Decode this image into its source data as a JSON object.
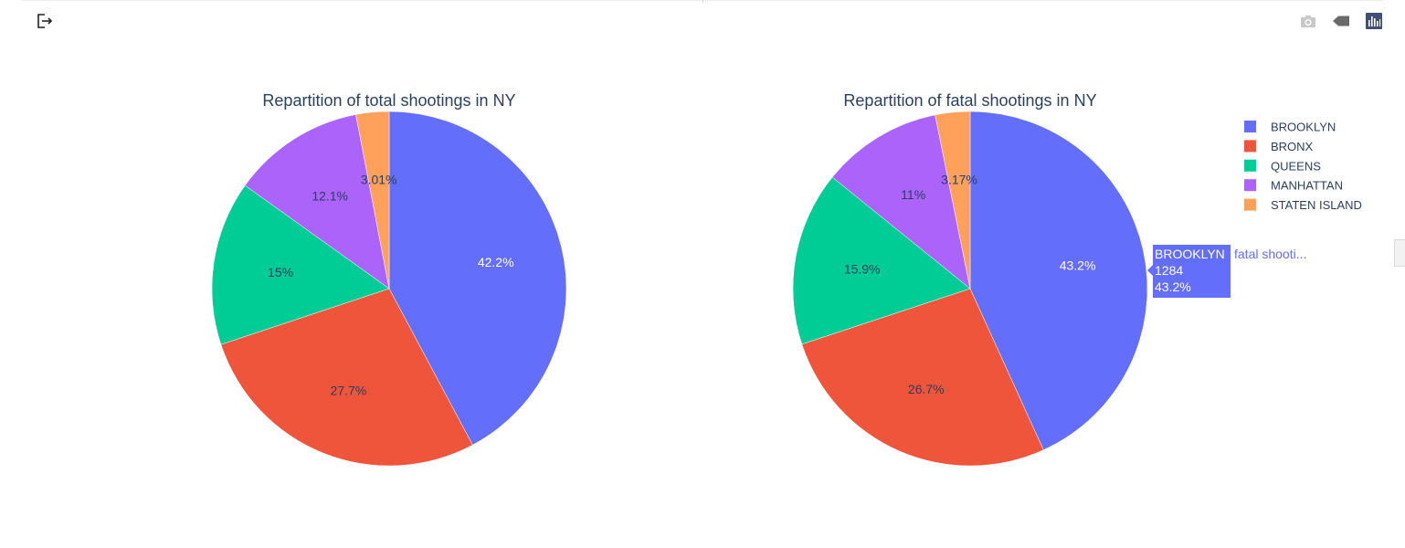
{
  "modebar": {
    "exit_icon": "exit-icon",
    "camera_icon": "camera-icon",
    "tag_icon": "tag-icon",
    "plotly_logo_icon": "plotly-logo-icon"
  },
  "chart_data": [
    {
      "type": "pie",
      "title": "Repartition of total shootings in NY",
      "labels": [
        "BROOKLYN",
        "BRONX",
        "QUEENS",
        "MANHATTAN",
        "STATEN ISLAND"
      ],
      "values": [
        42.2,
        27.7,
        15.0,
        12.1,
        3.01
      ],
      "text_labels": [
        "42.2%",
        "27.7%",
        "15%",
        "12.1%",
        "3.01%"
      ],
      "colors": [
        "#636efa",
        "#ef553b",
        "#00cc96",
        "#ab63fa",
        "#ffa15a"
      ]
    },
    {
      "type": "pie",
      "title": "Repartition of fatal shootings in NY",
      "labels": [
        "BROOKLYN",
        "BRONX",
        "QUEENS",
        "MANHATTAN",
        "STATEN ISLAND"
      ],
      "values": [
        43.2,
        26.7,
        15.9,
        11.0,
        3.17
      ],
      "text_labels": [
        "43.2%",
        "26.7%",
        "15.9%",
        "11%",
        "3.17%"
      ],
      "colors": [
        "#636efa",
        "#ef553b",
        "#00cc96",
        "#ab63fa",
        "#ffa15a"
      ]
    }
  ],
  "legend": {
    "position": "top-right",
    "items": [
      {
        "label": "BROOKLYN",
        "color": "#636efa"
      },
      {
        "label": "BRONX",
        "color": "#ef553b"
      },
      {
        "label": "QUEENS",
        "color": "#00cc96"
      },
      {
        "label": "MANHATTAN",
        "color": "#ab63fa"
      },
      {
        "label": "STATEN ISLAND",
        "color": "#ffa15a"
      }
    ]
  },
  "hover": {
    "label": "BROOKLYN",
    "value": "1284",
    "percent": "43.2%",
    "trace_name": "fatal shooti...",
    "color": "#636efa"
  },
  "colors": {
    "title_text": "#2a3f5f",
    "legend_text": "#2a3f5f",
    "slice_stroke": "#ffffff",
    "modebar_inactive": "#c8c8c8",
    "modebar_active": "#506784"
  }
}
